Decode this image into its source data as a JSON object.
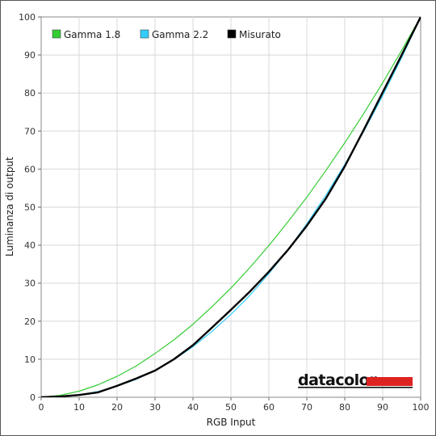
{
  "chart_data": {
    "type": "line",
    "xlabel": "RGB Input",
    "ylabel": "Luminanza di output",
    "xlim": [
      0,
      100
    ],
    "ylim": [
      0,
      100
    ],
    "x_ticks": [
      0,
      10,
      20,
      30,
      40,
      50,
      60,
      70,
      80,
      90,
      100
    ],
    "y_ticks": [
      0,
      10,
      20,
      30,
      40,
      50,
      60,
      70,
      80,
      90,
      100
    ],
    "grid": true,
    "legend_position": "top-left",
    "series": [
      {
        "name": "Gamma 1.8",
        "color": "#33cc33",
        "x": [
          0,
          5,
          10,
          15,
          20,
          25,
          30,
          35,
          40,
          45,
          50,
          55,
          60,
          65,
          70,
          75,
          80,
          85,
          90,
          95,
          100
        ],
        "y": [
          0,
          0.5,
          1.6,
          3.3,
          5.5,
          8.2,
          11.5,
          15.1,
          19.2,
          23.8,
          28.7,
          34.1,
          39.9,
          46.1,
          52.6,
          59.6,
          66.9,
          74.6,
          82.7,
          91.2,
          100
        ]
      },
      {
        "name": "Gamma 2.2",
        "color": "#33ccff",
        "x": [
          0,
          5,
          10,
          15,
          20,
          25,
          30,
          35,
          40,
          45,
          50,
          55,
          60,
          65,
          70,
          75,
          80,
          85,
          90,
          95,
          100
        ],
        "y": [
          0,
          0.1,
          0.6,
          1.5,
          2.9,
          4.7,
          7.1,
          9.9,
          13.3,
          17.3,
          21.8,
          26.8,
          32.5,
          38.7,
          45.6,
          53.1,
          61.2,
          69.9,
          79.3,
          89.3,
          100
        ]
      },
      {
        "name": "Misurato",
        "color": "#000000",
        "x": [
          0,
          5,
          10,
          15,
          20,
          25,
          30,
          35,
          40,
          45,
          50,
          55,
          60,
          65,
          70,
          75,
          80,
          85,
          90,
          95,
          100
        ],
        "y": [
          0,
          0.2,
          0.6,
          1.3,
          3.0,
          4.9,
          7.0,
          10.0,
          13.7,
          18.3,
          23.0,
          27.8,
          33.0,
          38.7,
          45.1,
          52.2,
          60.7,
          70.3,
          80.2,
          90.0,
          100
        ]
      }
    ]
  },
  "brand": {
    "name": "datacolor",
    "accent": "#dd2222"
  }
}
